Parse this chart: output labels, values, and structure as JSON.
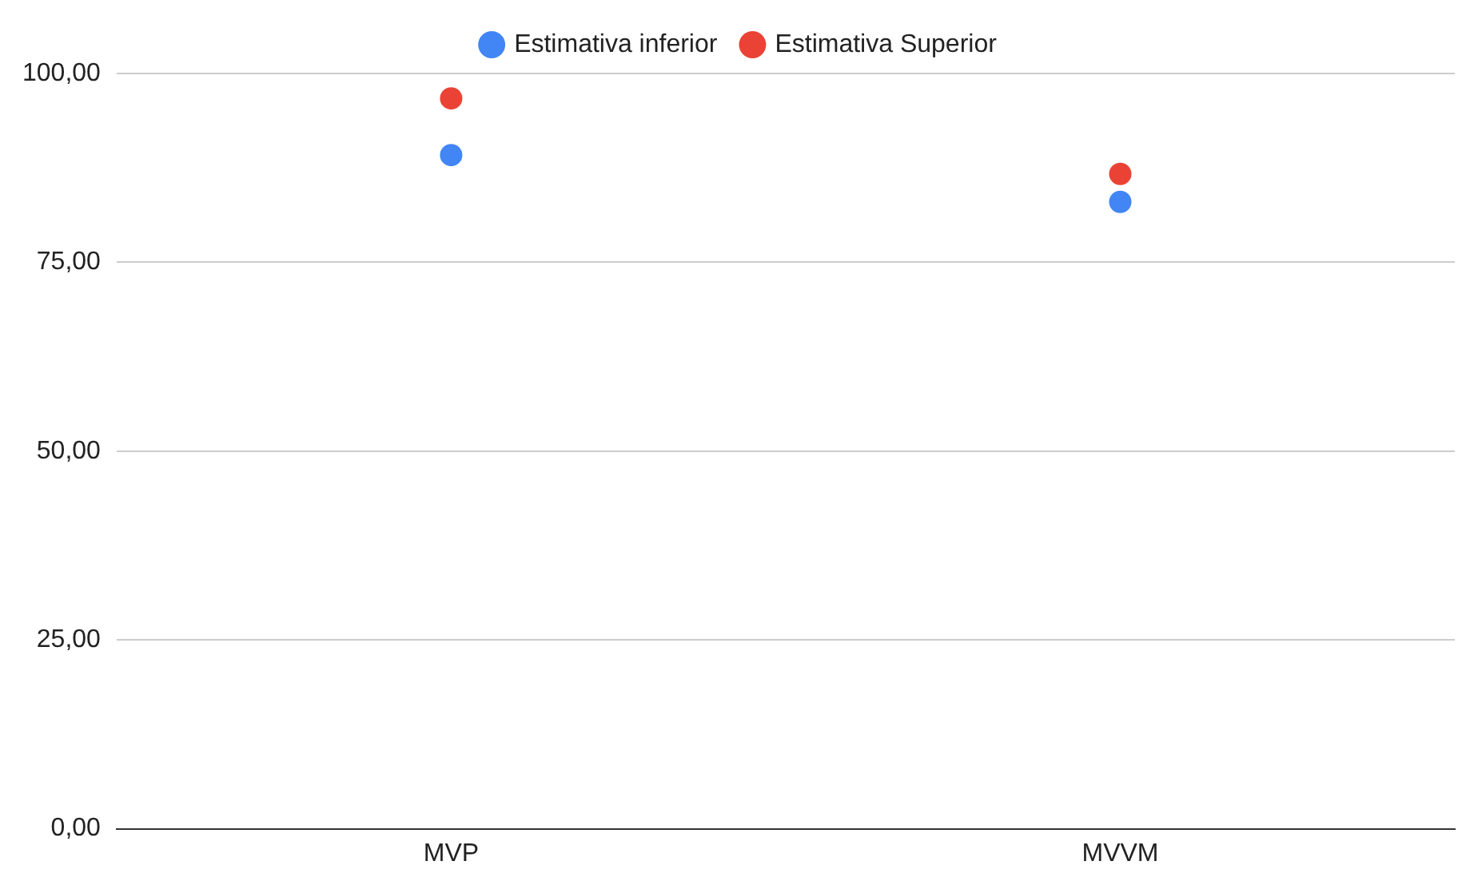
{
  "chart_data": {
    "type": "scatter",
    "categories": [
      "MVP",
      "MVVM"
    ],
    "series": [
      {
        "name": "Estimativa inferior",
        "color": "#4285f4",
        "values": [
          89.2,
          83.0
        ]
      },
      {
        "name": "Estimativa Superior",
        "color": "#ea4335",
        "values": [
          96.7,
          86.7
        ]
      }
    ],
    "ylim": [
      0,
      100
    ],
    "yticks": [
      {
        "value": 0,
        "label": "0,00"
      },
      {
        "value": 25,
        "label": "25,00"
      },
      {
        "value": 50,
        "label": "50,00"
      },
      {
        "value": 75,
        "label": "75,00"
      },
      {
        "value": 100,
        "label": "100,00"
      }
    ],
    "grid": "y",
    "legend": "top",
    "marker": "circle"
  }
}
